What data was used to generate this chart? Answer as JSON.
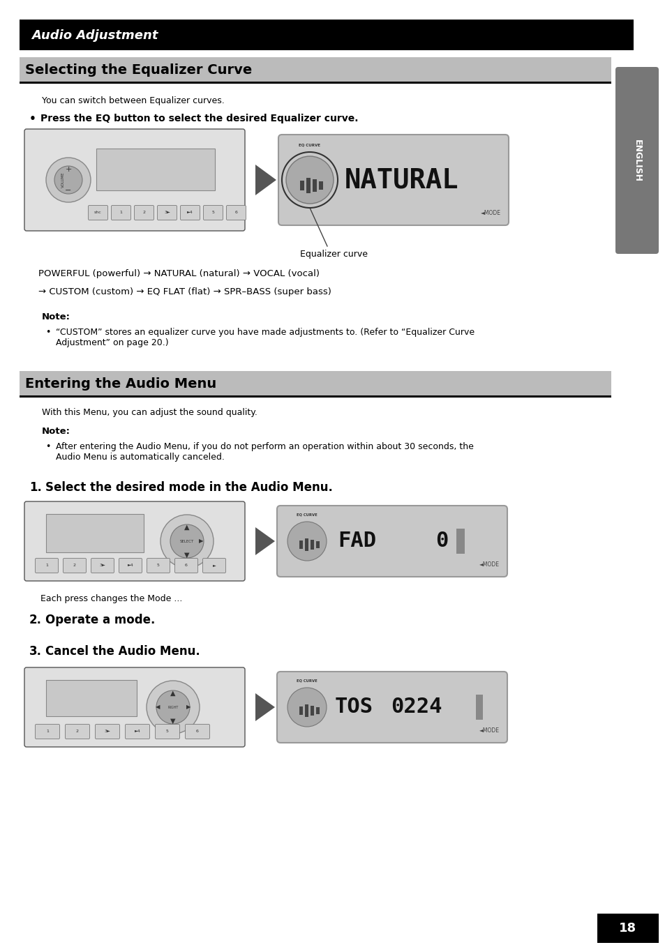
{
  "page_bg": "#ffffff",
  "header_bg": "#000000",
  "header_text": "Audio Adjustment",
  "header_text_color": "#ffffff",
  "section1_title": "Selecting the Equalizer Curve",
  "section1_title_color": "#000000",
  "section1_title_bg": "#bbbbbb",
  "section1_underline_color": "#000000",
  "section1_intro": "You can switch between Equalizer curves.",
  "section1_bullet": "Press the EQ button to select the desired Equalizer curve.",
  "section1_caption": "Equalizer curve",
  "section1_flow_line1": "POWERFUL (powerful) → NATURAL (natural) → VOCAL (vocal)",
  "section1_flow_line2": "→ CUSTOM (custom) → EQ FLAT (flat) → SPR–BASS (super bass)",
  "note_label": "Note:",
  "note1_text": "“CUSTOM” stores an equalizer curve you have made adjustments to. (Refer to “Equalizer Curve\nAdjustment” on page 20.)",
  "section2_title": "Entering the Audio Menu",
  "section2_title_color": "#000000",
  "section2_title_bg": "#bbbbbb",
  "section2_underline_color": "#000000",
  "section2_intro": "With this Menu, you can adjust the sound quality.",
  "note2_text": "After entering the Audio Menu, if you do not perform an operation within about 30 seconds, the\nAudio Menu is automatically canceled.",
  "step1_text": "Select the desired mode in the Audio Menu.",
  "step1_caption": "Each press changes the Mode ...",
  "step2_text": "Operate a mode.",
  "step3_text": "Cancel the Audio Menu.",
  "sidebar_text": "ENGLISH",
  "sidebar_bg": "#777777",
  "sidebar_text_color": "#ffffff",
  "page_number": "18",
  "page_number_bg": "#000000",
  "page_number_color": "#ffffff"
}
